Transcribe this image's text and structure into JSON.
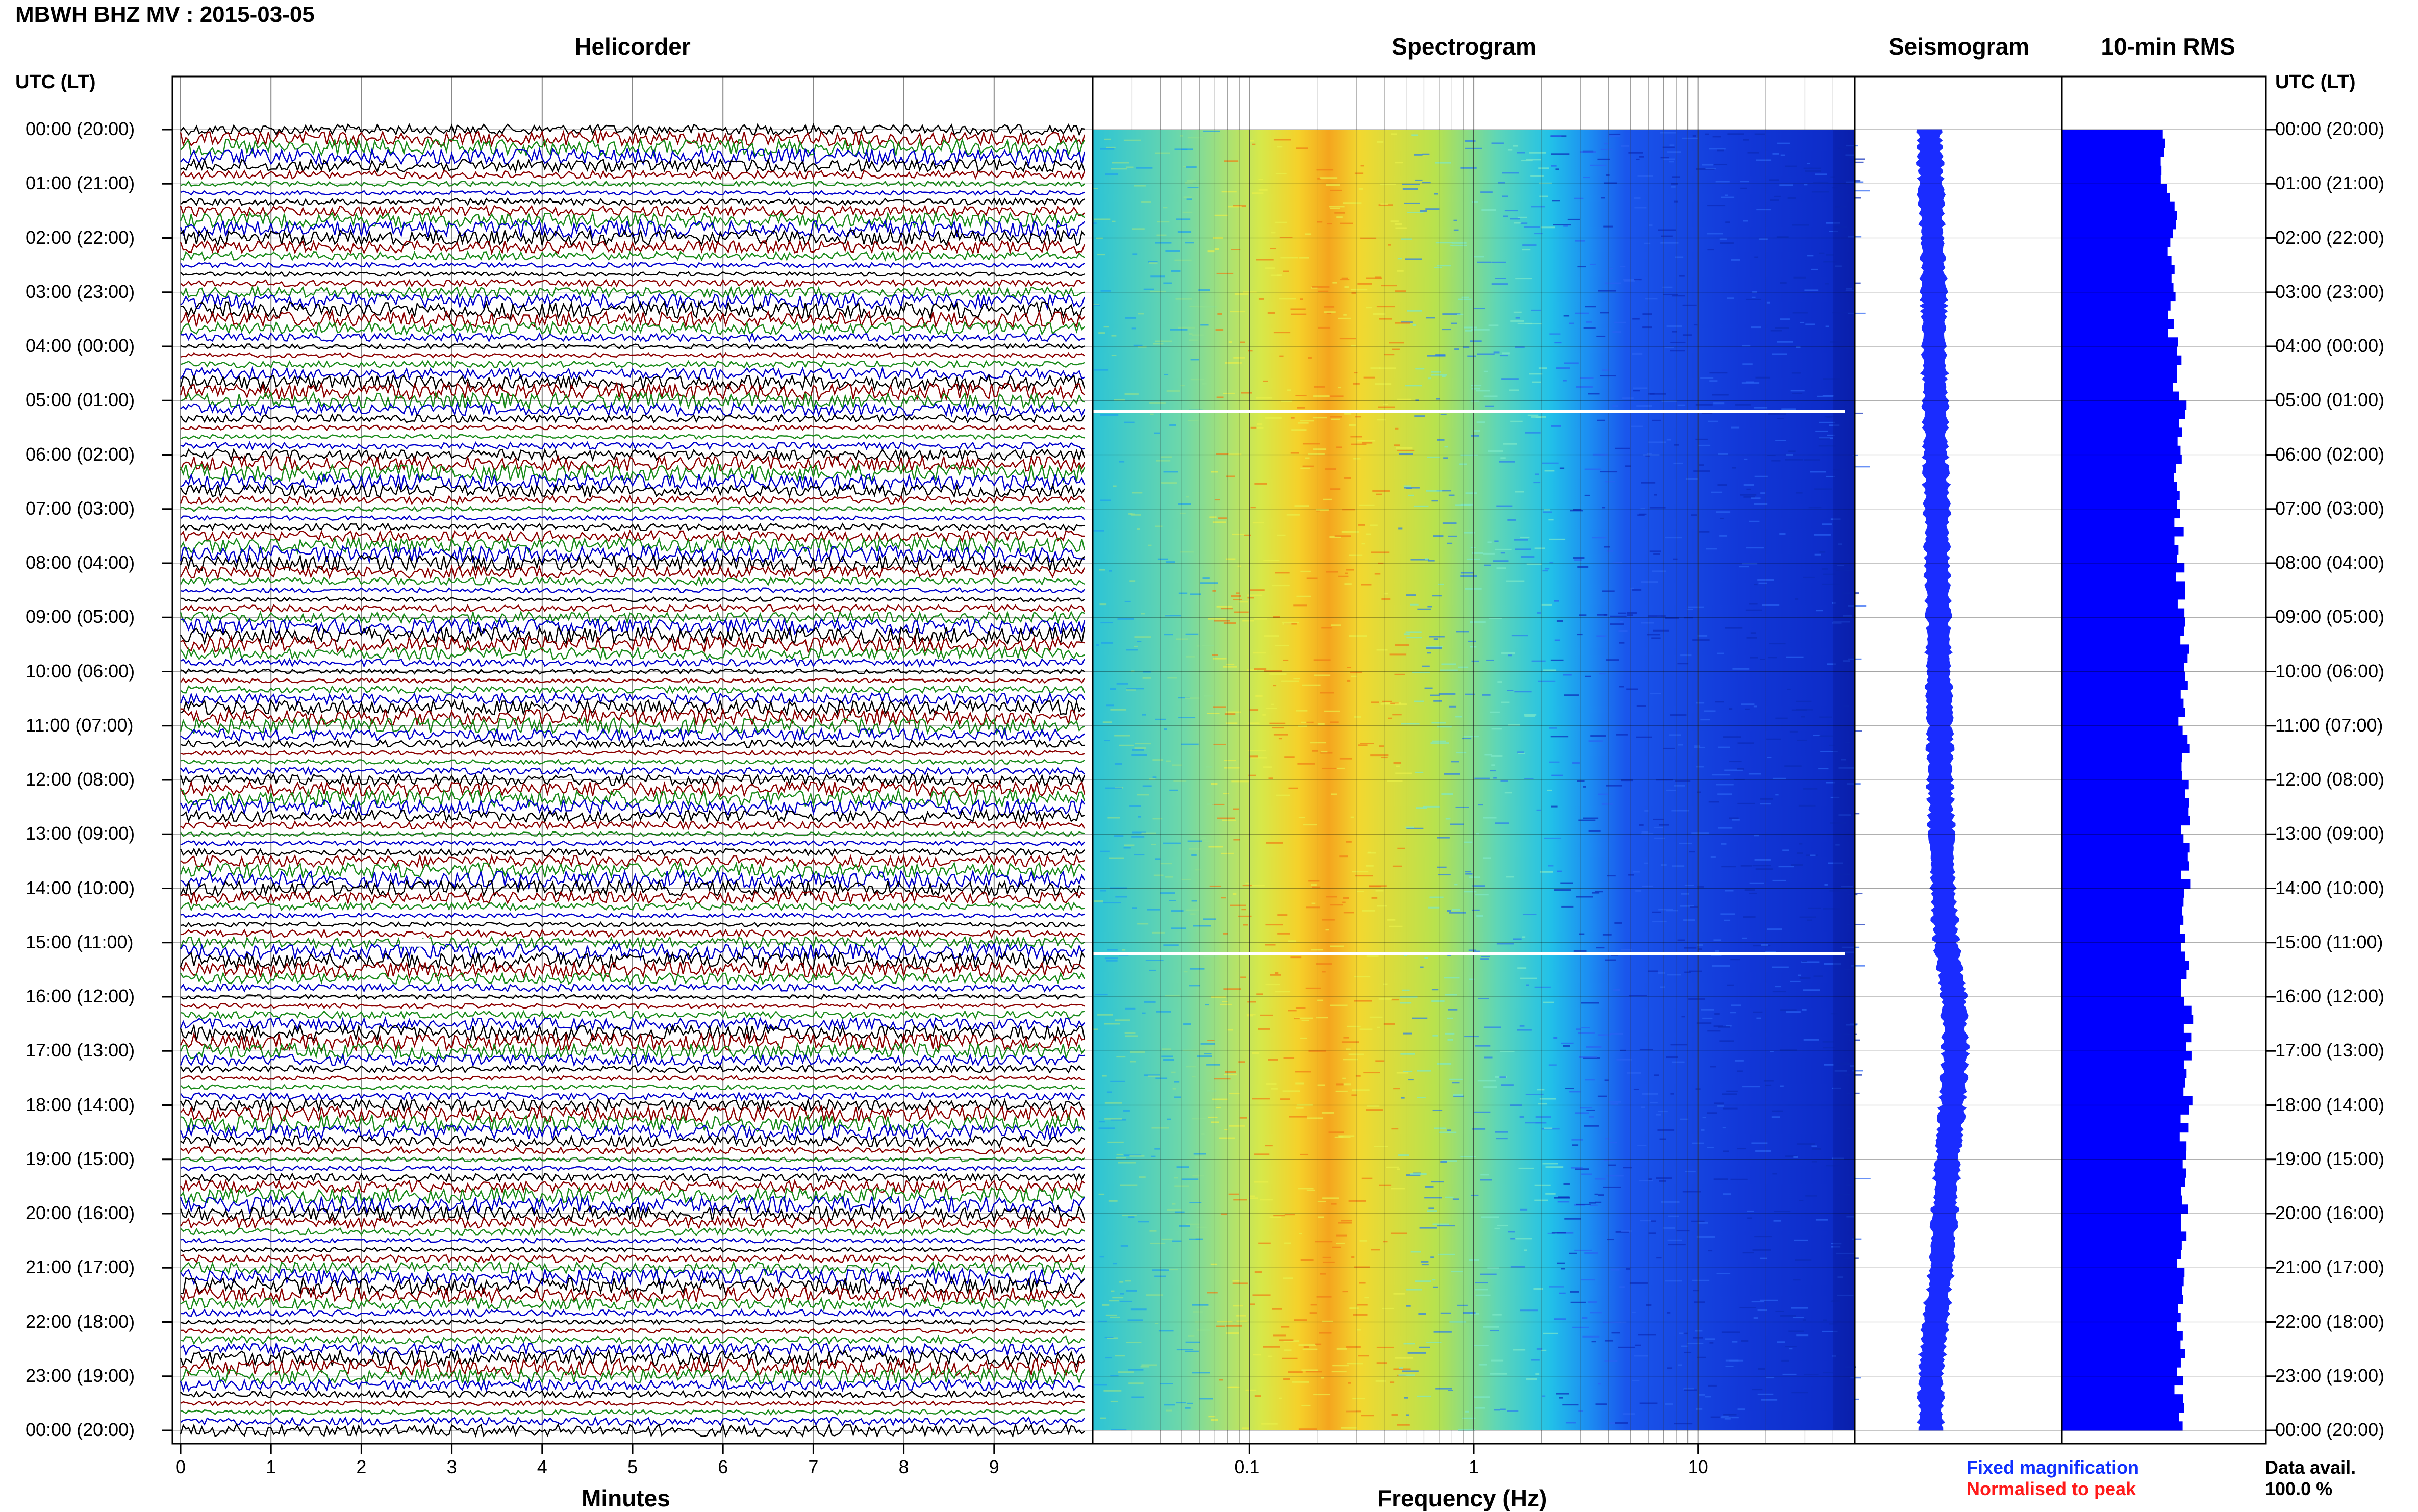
{
  "header": {
    "title": "MBWH BHZ MV : 2015-03-05"
  },
  "panels": {
    "helicorder": "Helicorder",
    "spectrogram": "Spectrogram",
    "seismogram": "Seismogram",
    "rms": "10-min RMS"
  },
  "axes": {
    "left_header": "UTC (LT)",
    "right_header": "UTC (LT)",
    "minutes_label": "Minutes",
    "frequency_label": "Frequency (Hz)"
  },
  "time_labels": [
    "00:00 (20:00)",
    "01:00 (21:00)",
    "02:00 (22:00)",
    "03:00 (23:00)",
    "04:00 (00:00)",
    "05:00 (01:00)",
    "06:00 (02:00)",
    "07:00 (03:00)",
    "08:00 (04:00)",
    "09:00 (05:00)",
    "10:00 (06:00)",
    "11:00 (07:00)",
    "12:00 (08:00)",
    "13:00 (09:00)",
    "14:00 (10:00)",
    "15:00 (11:00)",
    "16:00 (12:00)",
    "17:00 (13:00)",
    "18:00 (14:00)",
    "19:00 (15:00)",
    "20:00 (16:00)",
    "21:00 (17:00)",
    "22:00 (18:00)",
    "23:00 (19:00)",
    "00:00 (20:00)"
  ],
  "legend": {
    "fixed": "Fixed magnification",
    "normalised": "Normalised to peak"
  },
  "availability": {
    "label": "Data avail.",
    "value": "100.0 %"
  },
  "colors": {
    "trace_cycle": [
      "#000000",
      "#8b0000",
      "#1a8a1a",
      "#0000cc"
    ],
    "seismogram": "#1a2cff",
    "rms": "#0000ff",
    "legend_fixed": "#1030ff",
    "legend_normalised": "#ff1a1a"
  },
  "chart_data": [
    {
      "type": "line",
      "panel": "Helicorder",
      "xlabel": "Minutes",
      "x_ticks": [
        0,
        1,
        2,
        3,
        4,
        5,
        6,
        7,
        8,
        9
      ],
      "xlim": [
        0,
        10
      ],
      "traces_per_hour": 6,
      "hours": 24,
      "gaps": [
        {
          "hour": 15,
          "minute": 2.6
        }
      ]
    },
    {
      "type": "heatmap",
      "panel": "Spectrogram",
      "xlabel": "Frequency (Hz)",
      "x_scale": "log",
      "xlim": [
        0.02,
        50
      ],
      "x_ticks": [
        "0.1",
        "1",
        "10"
      ],
      "peak_frequency_hz": 0.25,
      "data_gaps_utc_hour": [
        5.2,
        15.2
      ]
    },
    {
      "type": "line",
      "panel": "Seismogram",
      "series": [
        {
          "values": [
            0.12,
            0.13,
            0.14,
            0.15,
            0.15,
            0.16,
            0.16,
            0.17,
            0.17,
            0.18,
            0.18,
            0.19,
            0.19,
            0.2,
            0.21,
            0.23,
            0.28,
            0.29,
            0.27,
            0.24,
            0.22,
            0.2,
            0.16,
            0.13
          ]
        }
      ]
    },
    {
      "type": "bar",
      "panel": "10-min RMS",
      "values": [
        0.68,
        0.72,
        0.7,
        0.73,
        0.75,
        0.78,
        0.76,
        0.77,
        0.78,
        0.79,
        0.8,
        0.8,
        0.8,
        0.81,
        0.8,
        0.8,
        0.82,
        0.82,
        0.8,
        0.79,
        0.79,
        0.78,
        0.78,
        0.77
      ]
    }
  ]
}
